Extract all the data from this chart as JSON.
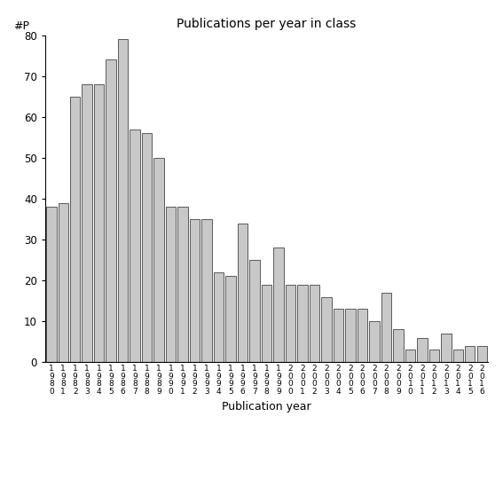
{
  "title": "Publications per year in class",
  "xlabel": "Publication year",
  "ylabel": "#P",
  "bar_color": "#c8c8c8",
  "bar_edgecolor": "#444444",
  "background_color": "#ffffff",
  "ylim": [
    0,
    80
  ],
  "yticks": [
    0,
    10,
    20,
    30,
    40,
    50,
    60,
    70,
    80
  ],
  "years": [
    "1980",
    "1981",
    "1982",
    "1983",
    "1984",
    "1985",
    "1986",
    "1987",
    "1988",
    "1989",
    "1990",
    "1991",
    "1992",
    "1993",
    "1994",
    "1995",
    "1996",
    "1997",
    "1998",
    "1999",
    "2000",
    "2001",
    "2002",
    "2003",
    "2004",
    "2005",
    "2006",
    "2007",
    "2008",
    "2009",
    "2010",
    "2011",
    "2012",
    "2013",
    "2014",
    "2015",
    "2016"
  ],
  "values": [
    38,
    39,
    65,
    68,
    68,
    74,
    79,
    57,
    56,
    50,
    38,
    38,
    35,
    35,
    22,
    21,
    34,
    25,
    19,
    28,
    19,
    19,
    19,
    16,
    13,
    13,
    13,
    10,
    17,
    8,
    3,
    6,
    3,
    7,
    3,
    4,
    4
  ]
}
